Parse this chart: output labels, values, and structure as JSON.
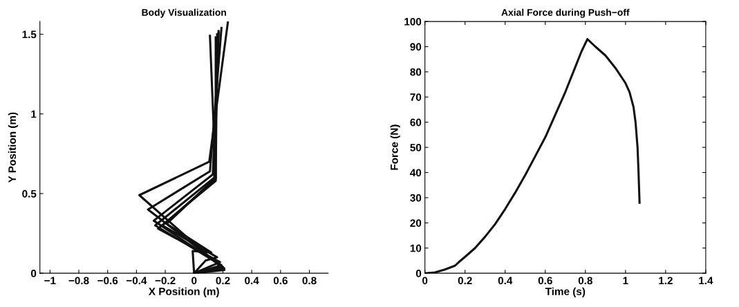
{
  "chart_data": [
    {
      "type": "line",
      "title": "Body Visualization",
      "xlabel": "X Position (m)",
      "ylabel": "Y Position (m)",
      "xlim": [
        -1.07,
        0.93
      ],
      "ylim": [
        0,
        1.58
      ],
      "xticks": [
        {
          "value": -1,
          "label": "−1"
        },
        {
          "value": -0.8,
          "label": "−0.8"
        },
        {
          "value": -0.6,
          "label": "−0.6"
        },
        {
          "value": -0.4,
          "label": "−0.4"
        },
        {
          "value": -0.2,
          "label": "−0.2"
        },
        0,
        0.2,
        0.4,
        0.6,
        0.8
      ],
      "yticks": [
        0,
        0.5,
        1,
        1.5
      ],
      "grid": false,
      "legend": false,
      "series": [
        {
          "color": "#111111",
          "x": [
            0,
            -0.01,
            0.12,
            -0.19,
            0.15,
            0.11
          ],
          "values": [
            0,
            0.14,
            0.13,
            0.31,
            0.6,
            1.49
          ]
        },
        {
          "color": "#111111",
          "x": [
            0,
            0.08,
            0.16,
            -0.22,
            0.15,
            0.15
          ],
          "values": [
            0,
            0.08,
            0.1,
            0.3,
            0.59,
            1.48
          ]
        },
        {
          "color": "#111111",
          "x": [
            0,
            0.18,
            -0.25,
            0.15,
            0.16
          ],
          "values": [
            0,
            0.07,
            0.28,
            0.58,
            1.5
          ]
        },
        {
          "color": "#111111",
          "x": [
            0,
            0.19,
            -0.27,
            0.14,
            0.17
          ],
          "values": [
            0,
            0.05,
            0.3,
            0.6,
            1.51
          ]
        },
        {
          "color": "#111111",
          "x": [
            0,
            0.2,
            -0.28,
            0.13,
            0.17
          ],
          "values": [
            0,
            0.04,
            0.33,
            0.62,
            1.52
          ]
        },
        {
          "color": "#111111",
          "x": [
            0,
            0.21,
            -0.32,
            0.11,
            0.19
          ],
          "values": [
            0,
            0.03,
            0.4,
            0.64,
            1.54
          ]
        },
        {
          "color": "#111111",
          "x": [
            0,
            0.21,
            -0.38,
            0.105,
            0.235
          ],
          "values": [
            0,
            0.02,
            0.49,
            0.7,
            1.58
          ]
        }
      ]
    },
    {
      "type": "line",
      "title": "Axial Force during Push−off",
      "xlabel": "Time (s)",
      "ylabel": "Force (N)",
      "xlim": [
        0,
        1.4
      ],
      "ylim": [
        0,
        100
      ],
      "xticks": [
        0,
        0.2,
        0.4,
        0.6,
        0.8,
        1,
        1.2,
        1.4
      ],
      "yticks": [
        0,
        10,
        20,
        30,
        40,
        50,
        60,
        70,
        80,
        90,
        100
      ],
      "grid": false,
      "legend": false,
      "series": [
        {
          "color": "#111111",
          "x": [
            0,
            0.05,
            0.1,
            0.15,
            0.17,
            0.2,
            0.25,
            0.3,
            0.35,
            0.4,
            0.45,
            0.5,
            0.55,
            0.6,
            0.65,
            0.7,
            0.75,
            0.78,
            0.81,
            0.85,
            0.9,
            0.95,
            1.0,
            1.02,
            1.04,
            1.05,
            1.06,
            1.065,
            1.07
          ],
          "values": [
            0,
            0.3,
            1.5,
            3,
            4.5,
            6.5,
            10,
            14.5,
            19.5,
            25.5,
            32,
            39,
            46.5,
            54,
            63,
            72,
            82,
            88,
            93,
            90,
            86.5,
            81.5,
            75.5,
            72,
            66,
            60,
            50,
            40,
            28
          ]
        }
      ]
    }
  ]
}
